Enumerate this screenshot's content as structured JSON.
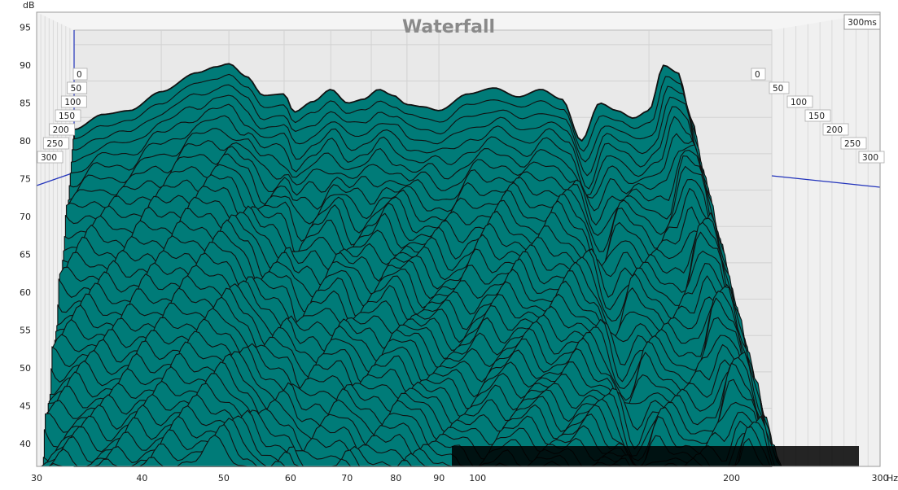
{
  "chart_data": {
    "type": "area",
    "title": "Waterfall",
    "y_unit": "dB",
    "x_unit": "Hz",
    "x_scale": "log",
    "xlim": [
      30,
      300
    ],
    "ylim": [
      37,
      97
    ],
    "x_ticks": [
      "30",
      "40",
      "50",
      "60",
      "70",
      "80",
      "90",
      "100",
      "200",
      "300"
    ],
    "y_ticks": [
      "95",
      "90",
      "85",
      "80",
      "75",
      "70",
      "65",
      "60",
      "55",
      "50",
      "45",
      "40"
    ],
    "time_axis_label": "300ms",
    "time_labels": [
      "0",
      "50",
      "100",
      "150",
      "200",
      "250",
      "300"
    ],
    "slice_count": 40,
    "fill_color": "#007b78",
    "line_color": "#111111",
    "back_panel_color": "#e9e9e9",
    "grid": true,
    "first_slice": {
      "time_ms": 0,
      "x": [
        30,
        33,
        36,
        40,
        45,
        48,
        50,
        53,
        56,
        60,
        62,
        66,
        70,
        74,
        78,
        82,
        86,
        90,
        95,
        100,
        110,
        120,
        130,
        140,
        150,
        160,
        170,
        180,
        190,
        200,
        210,
        220,
        230,
        240,
        250,
        260,
        270,
        280,
        290,
        300
      ],
      "db": [
        81.5,
        83.5,
        84.0,
        86.5,
        89.0,
        89.8,
        90.2,
        88.5,
        86.0,
        86.2,
        83.8,
        85.2,
        86.8,
        85.0,
        85.5,
        86.8,
        86.0,
        84.8,
        84.5,
        84.0,
        86.2,
        87.0,
        85.8,
        86.8,
        85.5,
        80.0,
        85.0,
        84.0,
        83.0,
        84.0,
        90.0,
        89.0,
        83.0,
        75.0,
        68.0,
        60.0,
        52.0,
        44.0,
        40.0,
        38.0
      ]
    }
  }
}
